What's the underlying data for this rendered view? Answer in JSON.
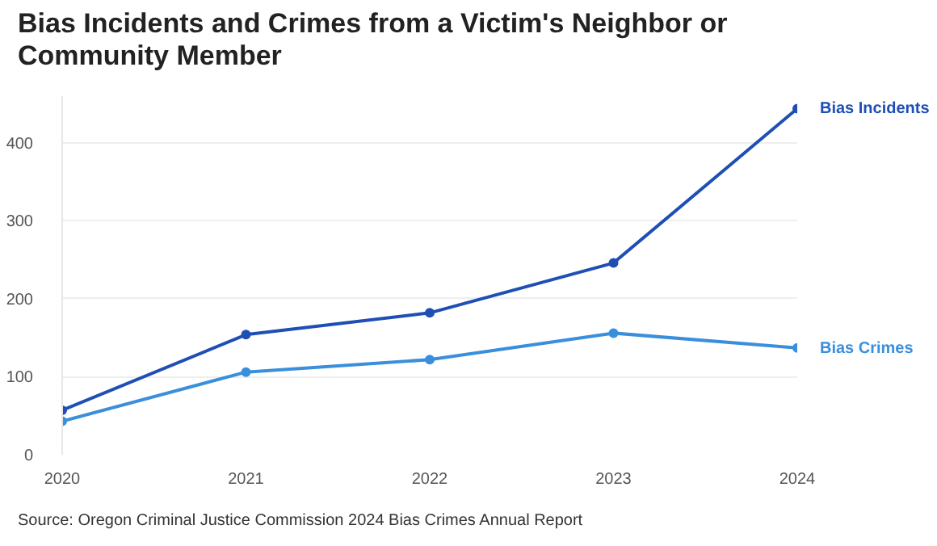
{
  "chart_data": {
    "type": "line",
    "title": "Bias Incidents and Crimes from a Victim's Neighbor or Community Member",
    "x": [
      2020,
      2021,
      2022,
      2023,
      2024
    ],
    "xlim": [
      2020,
      2024
    ],
    "xticks": [
      2020,
      2021,
      2022,
      2023,
      2024
    ],
    "ylim": [
      0,
      460
    ],
    "yticks": [
      0,
      100,
      200,
      300,
      400
    ],
    "grid": "y",
    "legend": false,
    "marker": "circle",
    "line_style": "solid",
    "series": [
      {
        "name": "Bias Incidents",
        "color": "#1f4fb4",
        "values": [
          57,
          154,
          182,
          246,
          444
        ]
      },
      {
        "name": "Bias Crimes",
        "color": "#3a8fdc",
        "values": [
          43,
          106,
          122,
          156,
          137
        ]
      }
    ],
    "annotations": [
      "Source: Oregon Criminal Justice Commission 2024 Bias Crimes Annual Report"
    ]
  }
}
